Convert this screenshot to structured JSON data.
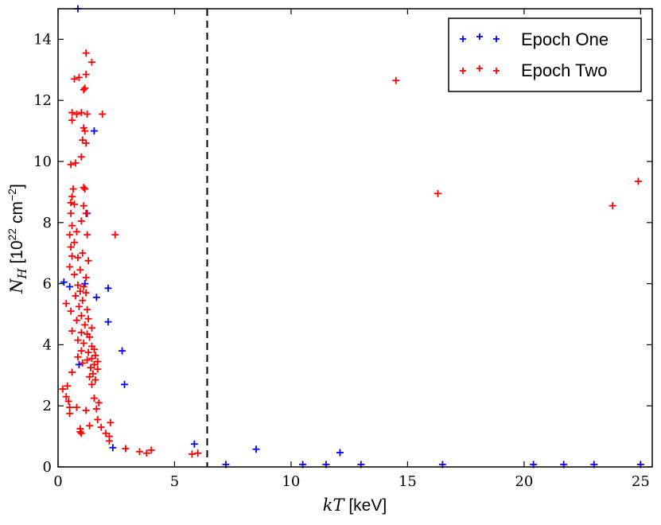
{
  "chart_data": {
    "type": "scatter",
    "xlabel": {
      "math": "kT",
      "text": " [keV]"
    },
    "ylabel": {
      "math": "N",
      "sub": "H",
      "text_pre": " [10",
      "sup": "22",
      "text_mid": " cm",
      "sup2": "−2",
      "text_post": "]"
    },
    "xlim": [
      0,
      25.5
    ],
    "ylim": [
      0,
      15
    ],
    "xticks": [
      0,
      5,
      10,
      15,
      20,
      25
    ],
    "yticks": [
      0,
      2,
      4,
      6,
      8,
      10,
      12,
      14
    ],
    "marker": "+",
    "grid": false,
    "legend_position": "top-right",
    "vline": {
      "x": 6.4,
      "style": "dashed",
      "color": "#000000"
    },
    "series": [
      {
        "name": "Epoch One",
        "color": "#0000ff",
        "points": [
          [
            0.85,
            15.0
          ],
          [
            0.25,
            6.05
          ],
          [
            0.5,
            5.9
          ],
          [
            1.15,
            6.0
          ],
          [
            2.15,
            5.85
          ],
          [
            1.65,
            5.55
          ],
          [
            2.15,
            4.75
          ],
          [
            2.75,
            3.8
          ],
          [
            0.9,
            3.35
          ],
          [
            2.85,
            2.7
          ],
          [
            1.55,
            11.0
          ],
          [
            1.25,
            8.3
          ],
          [
            2.35,
            0.63
          ],
          [
            5.85,
            0.75
          ],
          [
            7.2,
            0.08
          ],
          [
            8.5,
            0.58
          ],
          [
            10.5,
            0.08
          ],
          [
            11.5,
            0.08
          ],
          [
            12.1,
            0.47
          ],
          [
            13.0,
            0.08
          ],
          [
            16.5,
            0.08
          ],
          [
            20.4,
            0.08
          ],
          [
            21.7,
            0.08
          ],
          [
            23.0,
            0.08
          ],
          [
            25.0,
            0.08
          ]
        ]
      },
      {
        "name": "Epoch Two",
        "color": "#ff0000",
        "points": [
          [
            1.2,
            13.55
          ],
          [
            1.45,
            13.25
          ],
          [
            1.2,
            12.85
          ],
          [
            0.7,
            12.7
          ],
          [
            0.9,
            12.75
          ],
          [
            1.1,
            12.35
          ],
          [
            1.15,
            12.4
          ],
          [
            0.6,
            11.6
          ],
          [
            0.8,
            11.55
          ],
          [
            1.0,
            11.6
          ],
          [
            1.25,
            11.55
          ],
          [
            1.9,
            11.55
          ],
          [
            0.6,
            11.35
          ],
          [
            1.1,
            11.1
          ],
          [
            1.15,
            11.0
          ],
          [
            1.05,
            10.7
          ],
          [
            1.2,
            10.6
          ],
          [
            1.0,
            10.15
          ],
          [
            0.55,
            9.9
          ],
          [
            0.75,
            9.95
          ],
          [
            1.1,
            9.15
          ],
          [
            1.15,
            9.1
          ],
          [
            0.65,
            9.1
          ],
          [
            0.6,
            8.85
          ],
          [
            0.55,
            8.65
          ],
          [
            0.7,
            8.6
          ],
          [
            1.1,
            8.55
          ],
          [
            1.2,
            8.3
          ],
          [
            0.55,
            8.3
          ],
          [
            1.0,
            8.05
          ],
          [
            0.6,
            7.9
          ],
          [
            0.8,
            7.7
          ],
          [
            0.5,
            7.6
          ],
          [
            1.25,
            7.6
          ],
          [
            2.45,
            7.6
          ],
          [
            0.7,
            7.35
          ],
          [
            0.55,
            7.2
          ],
          [
            1.05,
            7.0
          ],
          [
            0.6,
            6.9
          ],
          [
            0.85,
            6.85
          ],
          [
            1.3,
            6.75
          ],
          [
            0.5,
            6.55
          ],
          [
            0.95,
            6.45
          ],
          [
            0.7,
            6.3
          ],
          [
            1.2,
            6.2
          ],
          [
            0.85,
            5.95
          ],
          [
            1.1,
            5.9
          ],
          [
            0.95,
            5.75
          ],
          [
            1.2,
            5.7
          ],
          [
            0.75,
            5.6
          ],
          [
            1.05,
            5.45
          ],
          [
            0.35,
            5.35
          ],
          [
            0.9,
            5.25
          ],
          [
            1.25,
            5.15
          ],
          [
            0.55,
            5.1
          ],
          [
            1.0,
            4.95
          ],
          [
            1.3,
            4.85
          ],
          [
            0.8,
            4.8
          ],
          [
            1.15,
            4.65
          ],
          [
            1.45,
            4.55
          ],
          [
            0.6,
            4.45
          ],
          [
            1.0,
            4.4
          ],
          [
            1.25,
            4.35
          ],
          [
            1.35,
            4.25
          ],
          [
            0.85,
            4.15
          ],
          [
            1.1,
            4.05
          ],
          [
            1.45,
            3.95
          ],
          [
            1.55,
            3.85
          ],
          [
            1.0,
            3.8
          ],
          [
            1.3,
            3.75
          ],
          [
            1.6,
            3.65
          ],
          [
            1.45,
            3.55
          ],
          [
            1.7,
            3.45
          ],
          [
            1.25,
            3.5
          ],
          [
            1.55,
            3.35
          ],
          [
            1.4,
            3.25
          ],
          [
            1.7,
            3.2
          ],
          [
            1.5,
            3.05
          ],
          [
            1.35,
            2.95
          ],
          [
            1.6,
            2.85
          ],
          [
            1.45,
            2.7
          ],
          [
            0.85,
            3.6
          ],
          [
            1.05,
            3.4
          ],
          [
            0.6,
            3.1
          ],
          [
            0.4,
            2.65
          ],
          [
            0.2,
            2.55
          ],
          [
            0.35,
            2.3
          ],
          [
            0.45,
            2.15
          ],
          [
            1.55,
            2.25
          ],
          [
            1.75,
            2.1
          ],
          [
            0.5,
            1.95
          ],
          [
            0.8,
            1.95
          ],
          [
            1.2,
            1.85
          ],
          [
            1.65,
            1.9
          ],
          [
            0.5,
            1.75
          ],
          [
            1.7,
            1.55
          ],
          [
            1.35,
            1.35
          ],
          [
            0.95,
            1.25
          ],
          [
            2.25,
            1.45
          ],
          [
            1.85,
            1.3
          ],
          [
            0.95,
            1.15
          ],
          [
            1.0,
            1.1
          ],
          [
            2.05,
            1.1
          ],
          [
            2.2,
            1.0
          ],
          [
            2.2,
            0.85
          ],
          [
            2.9,
            0.6
          ],
          [
            3.5,
            0.5
          ],
          [
            3.8,
            0.45
          ],
          [
            4.0,
            0.55
          ],
          [
            5.75,
            0.42
          ],
          [
            6.0,
            0.45
          ],
          [
            14.5,
            12.65
          ],
          [
            16.3,
            8.95
          ],
          [
            23.8,
            8.55
          ],
          [
            24.9,
            9.35
          ]
        ]
      }
    ]
  }
}
